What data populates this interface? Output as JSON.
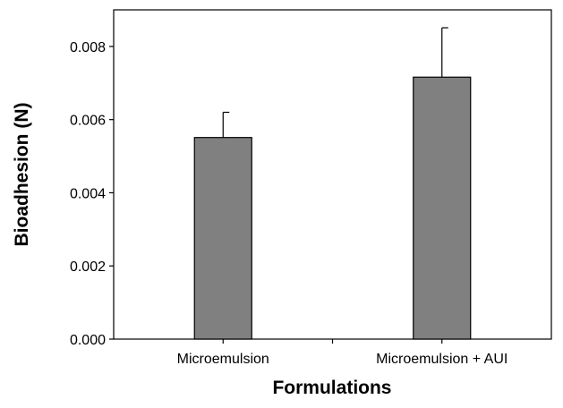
{
  "chart_data": {
    "type": "bar",
    "categories": [
      "Microemulsion",
      "Microemulsion + AUI"
    ],
    "series": [
      {
        "values": [
          0.00551,
          0.00716
        ],
        "error_upper": [
          0.0062,
          0.00851
        ],
        "color": "#808080"
      }
    ],
    "xlabel": "Formulations",
    "ylabel": "Bioadhesion (N)",
    "ylim": [
      0,
      0.009
    ],
    "yticks": [
      0,
      0.002,
      0.004,
      0.006,
      0.008
    ],
    "ytick_labels": [
      "0.000",
      "0.002",
      "0.004",
      "0.006",
      "0.008"
    ],
    "grid": false,
    "legend": "none"
  }
}
